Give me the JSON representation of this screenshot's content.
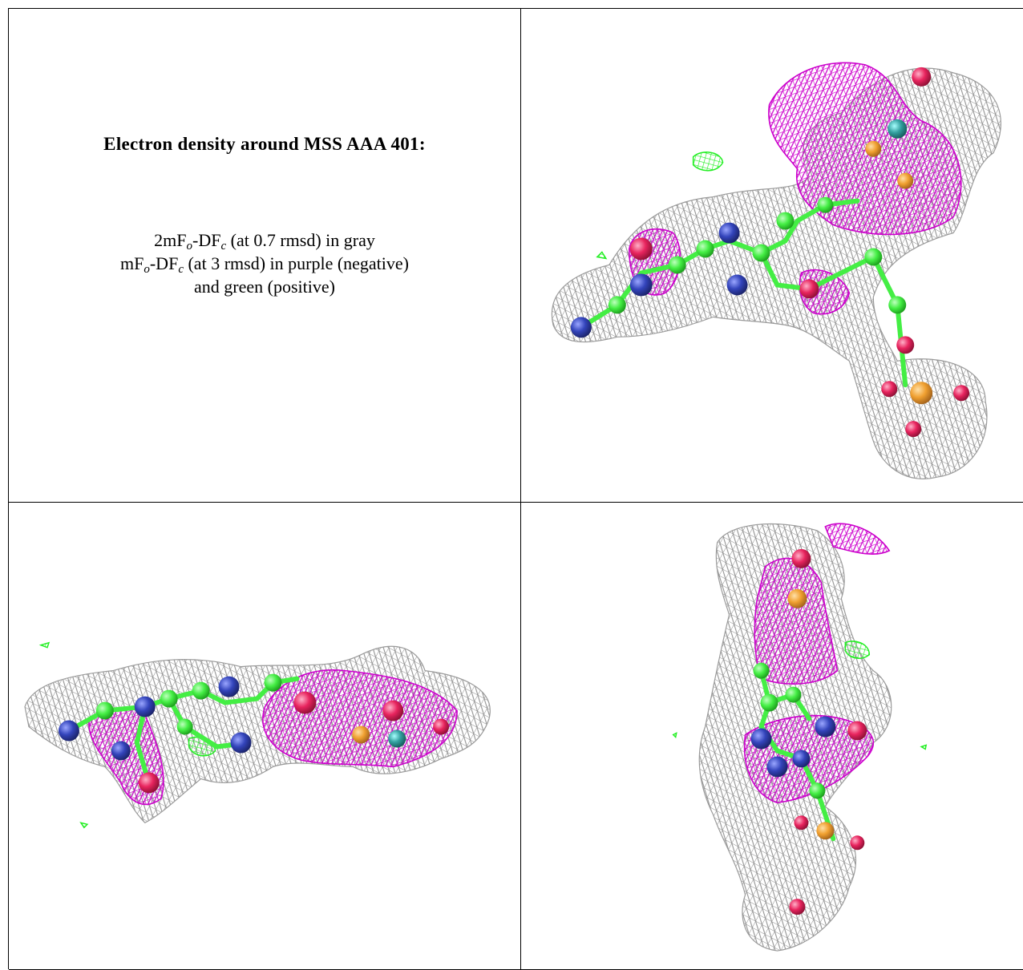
{
  "caption": {
    "title": "Electron density around MSS AAA 401:",
    "line1": {
      "prefix": "2mF",
      "sub1": "o",
      "mid": "-DF",
      "sub2": "c",
      "suffix": " (at 0.7 rmsd) in gray"
    },
    "line2": {
      "prefix": "mF",
      "sub1": "o",
      "mid": "-DF",
      "sub2": "c",
      "suffix": " (at 3 rmsd) in purple (negative)"
    },
    "line3": "and green (positive)"
  },
  "colors": {
    "gray_mesh": "#8c8c8c",
    "purple_mesh": "#cc00cc",
    "green_mesh": "#22ee22",
    "carbon": "#44ee44",
    "nitrogen": "#3344bb",
    "oxygen": "#e8245e",
    "phosphorus": "#f0a030",
    "sulfur": "#e6b020",
    "molybdenum": "#33a0a0"
  },
  "views": [
    {
      "name": "view-top-right",
      "icon": "electron-density-mesh-icon"
    },
    {
      "name": "view-bottom-left",
      "icon": "electron-density-mesh-icon"
    },
    {
      "name": "view-bottom-right",
      "icon": "electron-density-mesh-icon"
    }
  ]
}
